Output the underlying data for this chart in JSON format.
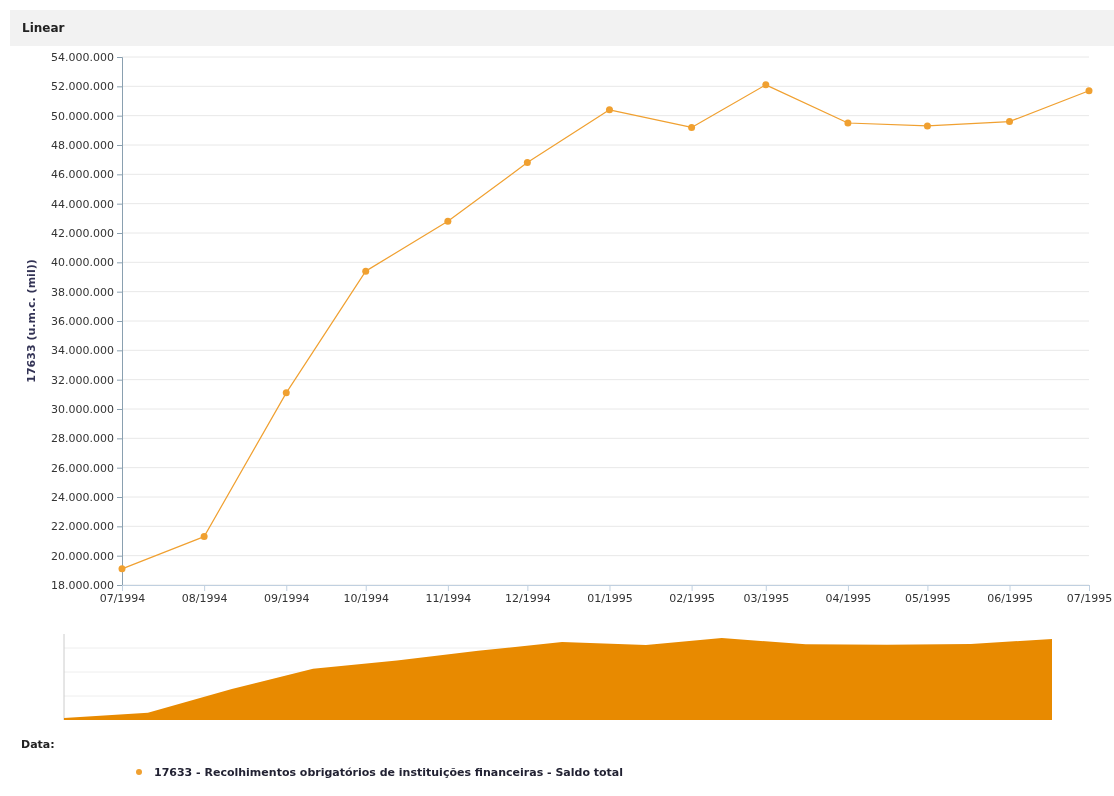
{
  "chart_data": {
    "type": "line",
    "title": "Linear",
    "ylabel": "17633 (u.m.c. (mil))",
    "legend_title": "Data:",
    "legend": "bottom",
    "grid": "y",
    "marker": "circle",
    "line_style": "solid",
    "x": [
      "1994-07",
      "1994-08",
      "1994-09",
      "1994-10",
      "1994-11",
      "1994-12",
      "1995-01",
      "1995-02",
      "1995-03",
      "1995-04",
      "1995-05",
      "1995-06",
      "1995-07"
    ],
    "xlim": [
      "1994-07",
      "1995-07"
    ],
    "xticks": [
      {
        "value": "1994-07",
        "label": "07/1994"
      },
      {
        "value": "1994-08",
        "label": "08/1994"
      },
      {
        "value": "1994-09",
        "label": "09/1994"
      },
      {
        "value": "1994-10",
        "label": "10/1994"
      },
      {
        "value": "1994-11",
        "label": "11/1994"
      },
      {
        "value": "1994-12",
        "label": "12/1994"
      },
      {
        "value": "1995-01",
        "label": "01/1995"
      },
      {
        "value": "1995-02",
        "label": "02/1995"
      },
      {
        "value": "1995-03",
        "label": "03/1995"
      },
      {
        "value": "1995-04",
        "label": "04/1995"
      },
      {
        "value": "1995-05",
        "label": "05/1995"
      },
      {
        "value": "1995-06",
        "label": "06/1995"
      },
      {
        "value": "1995-07",
        "label": "07/1995"
      }
    ],
    "ylim": [
      18000000,
      54000000
    ],
    "yticks": [
      {
        "value": 18000000,
        "label": "18.000.000"
      },
      {
        "value": 20000000,
        "label": "20.000.000"
      },
      {
        "value": 22000000,
        "label": "22.000.000"
      },
      {
        "value": 24000000,
        "label": "24.000.000"
      },
      {
        "value": 26000000,
        "label": "26.000.000"
      },
      {
        "value": 28000000,
        "label": "28.000.000"
      },
      {
        "value": 30000000,
        "label": "30.000.000"
      },
      {
        "value": 32000000,
        "label": "32.000.000"
      },
      {
        "value": 34000000,
        "label": "34.000.000"
      },
      {
        "value": 36000000,
        "label": "36.000.000"
      },
      {
        "value": 38000000,
        "label": "38.000.000"
      },
      {
        "value": 40000000,
        "label": "40.000.000"
      },
      {
        "value": 42000000,
        "label": "42.000.000"
      },
      {
        "value": 44000000,
        "label": "44.000.000"
      },
      {
        "value": 46000000,
        "label": "46.000.000"
      },
      {
        "value": 48000000,
        "label": "48.000.000"
      },
      {
        "value": 50000000,
        "label": "50.000.000"
      },
      {
        "value": 52000000,
        "label": "52.000.000"
      },
      {
        "value": 54000000,
        "label": "54.000.000"
      }
    ],
    "series": [
      {
        "name": "17633 - Recolhimentos obrigatórios de instituições financeiras - Saldo total",
        "color": "#f0a030",
        "values": [
          19100000,
          21300000,
          31100000,
          39400000,
          42800000,
          46800000,
          50400000,
          49200000,
          52100000,
          49500000,
          49300000,
          49600000,
          51700000
        ]
      }
    ]
  }
}
